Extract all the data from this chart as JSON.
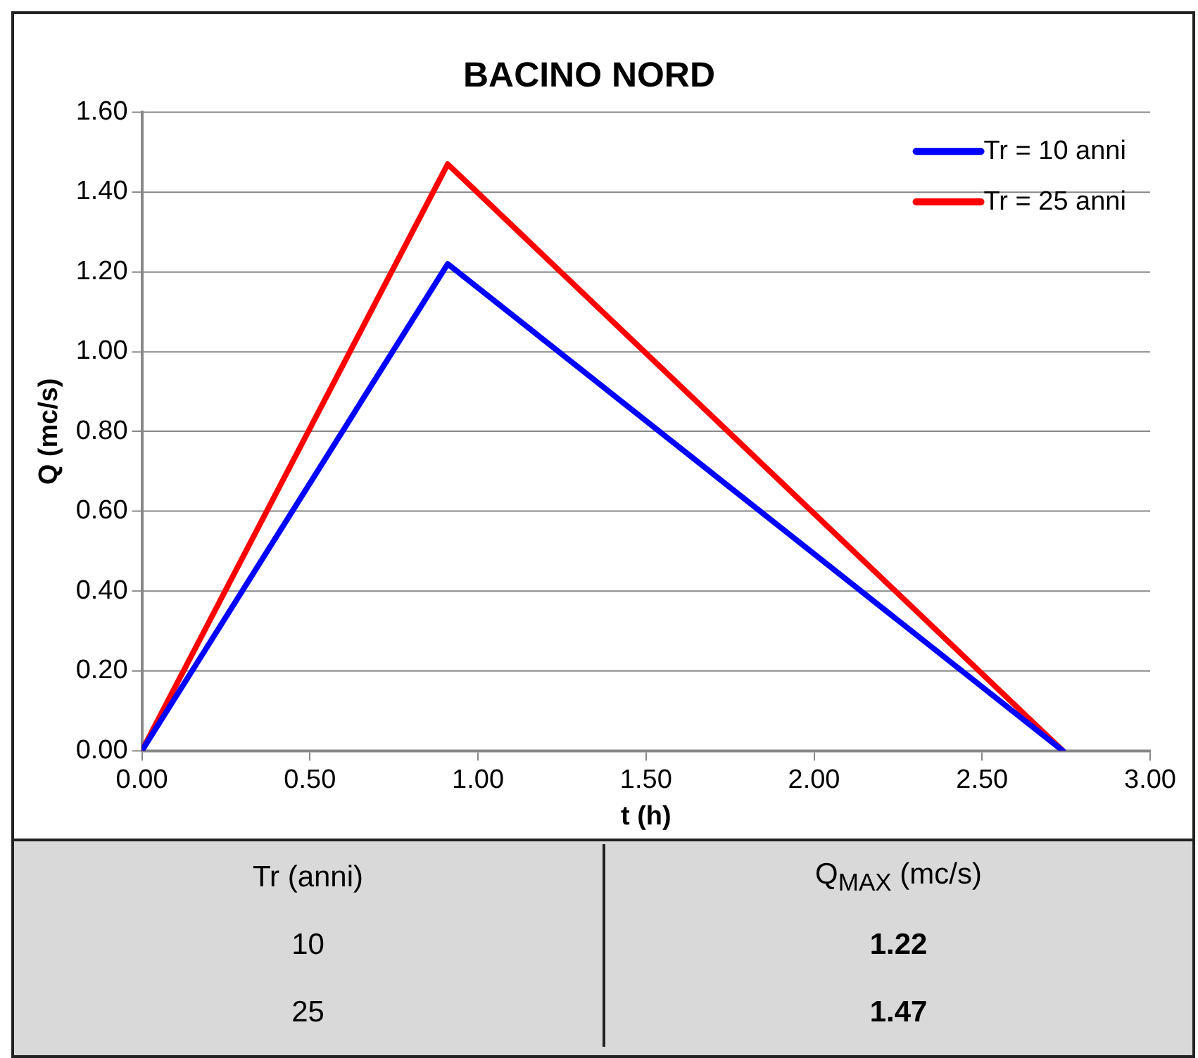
{
  "chart_data": {
    "type": "line",
    "title": "BACINO NORD",
    "xlabel": "t (h)",
    "ylabel": "Q (mc/s)",
    "x": [
      0,
      0.91,
      2.74
    ],
    "series": [
      {
        "name": "Tr = 10 anni",
        "color": "#0000ff",
        "values": [
          0,
          1.22,
          0
        ]
      },
      {
        "name": "Tr = 25 anni",
        "color": "#ff0000",
        "values": [
          0,
          1.47,
          0
        ]
      }
    ],
    "xlim": [
      0,
      3
    ],
    "xticks": [
      {
        "value": 0,
        "label": "0.00"
      },
      {
        "value": 0.5,
        "label": "0.50"
      },
      {
        "value": 1,
        "label": "1.00"
      },
      {
        "value": 1.5,
        "label": "1.50"
      },
      {
        "value": 2,
        "label": "2.00"
      },
      {
        "value": 2.5,
        "label": "2.50"
      },
      {
        "value": 3,
        "label": "3.00"
      }
    ],
    "ylim": [
      0,
      1.6
    ],
    "yticks": [
      {
        "value": 0,
        "label": "0.00"
      },
      {
        "value": 0.2,
        "label": "0.20"
      },
      {
        "value": 0.4,
        "label": "0.40"
      },
      {
        "value": 0.6,
        "label": "0.60"
      },
      {
        "value": 0.8,
        "label": "0.80"
      },
      {
        "value": 1,
        "label": "1.00"
      },
      {
        "value": 1.2,
        "label": "1.20"
      },
      {
        "value": 1.4,
        "label": "1.40"
      },
      {
        "value": 1.6,
        "label": "1.60"
      }
    ],
    "grid": "y",
    "legend": "top right",
    "marker": "none",
    "line_style": "solid",
    "annotations": [
      "Tr (anni)",
      "Q$_{MAX}$ (mc/s)",
      "10",
      "1.22",
      "25",
      "1.47"
    ]
  }
}
